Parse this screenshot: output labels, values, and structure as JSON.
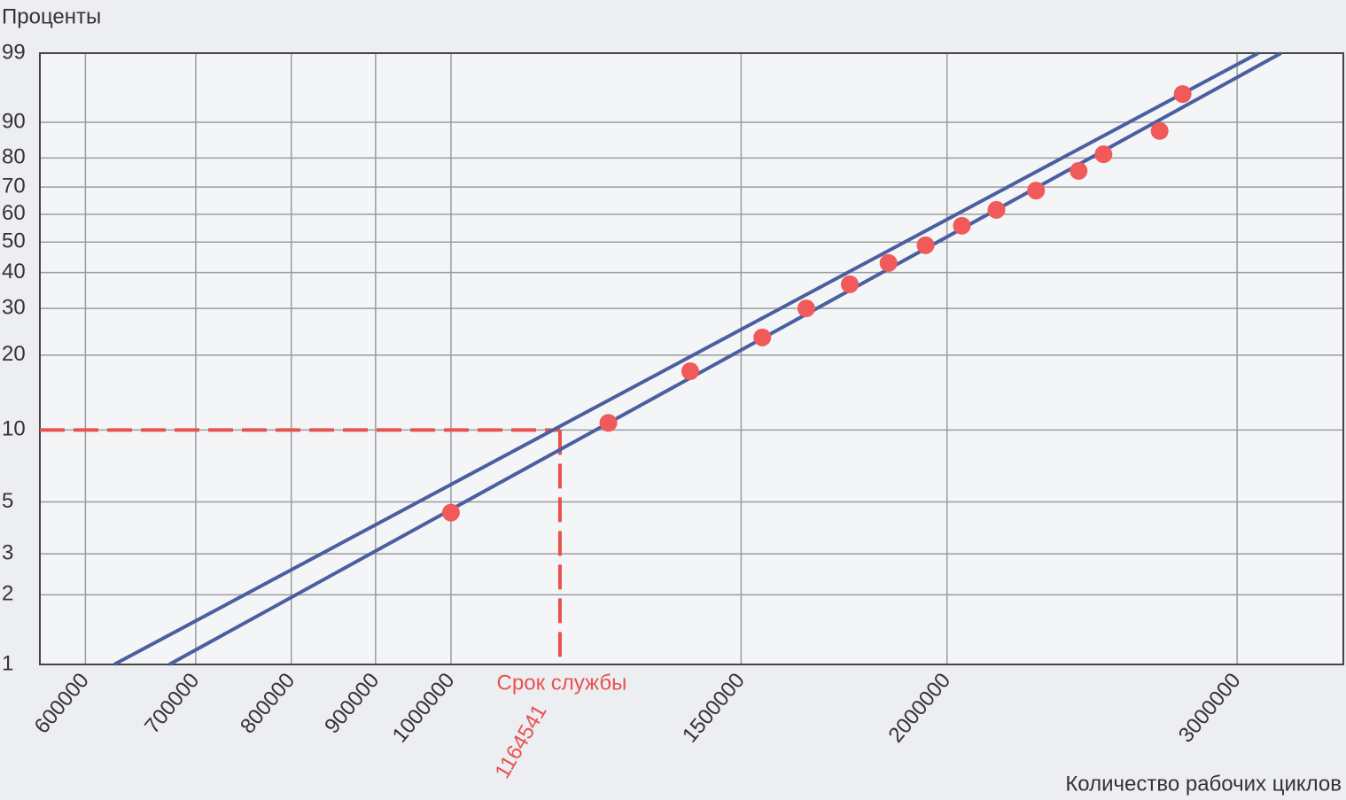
{
  "chart_data": {
    "type": "scatter",
    "y_label": "Проценты",
    "x_label": "Количество рабочих циклов",
    "xscale": "log",
    "yscale": "weibull",
    "xlim": [
      563000,
      3480000
    ],
    "xticks": [
      600000,
      700000,
      800000,
      900000,
      1000000,
      1500000,
      2000000,
      3000000
    ],
    "ylim": [
      1,
      99
    ],
    "yticks": [
      1,
      2,
      3,
      5,
      10,
      20,
      30,
      40,
      50,
      60,
      70,
      80,
      90,
      99
    ],
    "grid": true,
    "points": {
      "color": "#f05a5a",
      "x": [
        1000000,
        1246000,
        1397000,
        1545000,
        1643000,
        1746000,
        1843000,
        1941000,
        2042000,
        2143000,
        2265000,
        2404000,
        2489000,
        2692000,
        2780000
      ],
      "values": [
        4.5,
        10.7,
        17.3,
        23.4,
        30,
        36.5,
        43,
        48.9,
        55.8,
        61.6,
        68.7,
        75.7,
        81.2,
        87.9,
        95.3
      ]
    },
    "fit_lines": [
      {
        "color": "#4a5fa0",
        "x": [
          624600,
          3090000
        ],
        "values": [
          1,
          99
        ]
      },
      {
        "color": "#4a5fa0",
        "x": [
          674600,
          3190000
        ],
        "values": [
          1,
          99
        ]
      }
    ],
    "annotation": {
      "label": "Срок службы",
      "x": 1164541,
      "y": 10,
      "color": "#e8524f"
    }
  }
}
